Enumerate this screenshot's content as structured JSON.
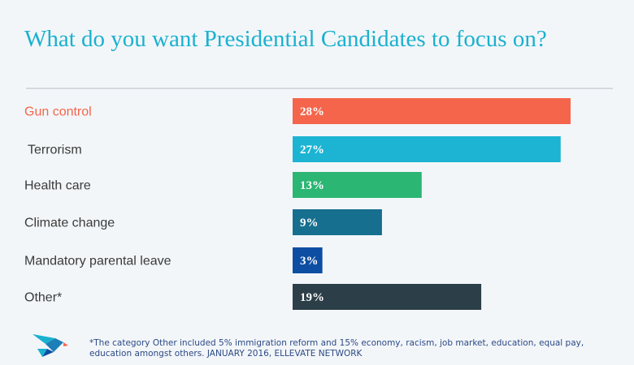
{
  "chart_data": {
    "type": "bar",
    "orientation": "horizontal",
    "title": "What do you want Presidential Candidates to focus on?",
    "categories": [
      "Gun control",
      "Terrorism",
      "Health care",
      "Climate change",
      "Mandatory parental leave",
      "Other*"
    ],
    "values": [
      28,
      27,
      13,
      9,
      3,
      19
    ],
    "value_labels": [
      "28%",
      "27%",
      "13%",
      "9%",
      "3%",
      "19%"
    ],
    "unit": "%",
    "colors": [
      "#f4654b",
      "#1cb4d2",
      "#2bb673",
      "#176f8f",
      "#0d4ea3",
      "#2c3e48"
    ],
    "highlight_label_color": "#f4654b",
    "label_color": "#3a3a3a",
    "xlim": [
      0,
      28
    ]
  },
  "footnote": "*The category Other included 5% immigration reform and 15% economy, racism, job market, education, equal pay, education amongst others. JANUARY 2016, ELLEVATE NETWORK",
  "logo_icon": "bird-logo-icon"
}
